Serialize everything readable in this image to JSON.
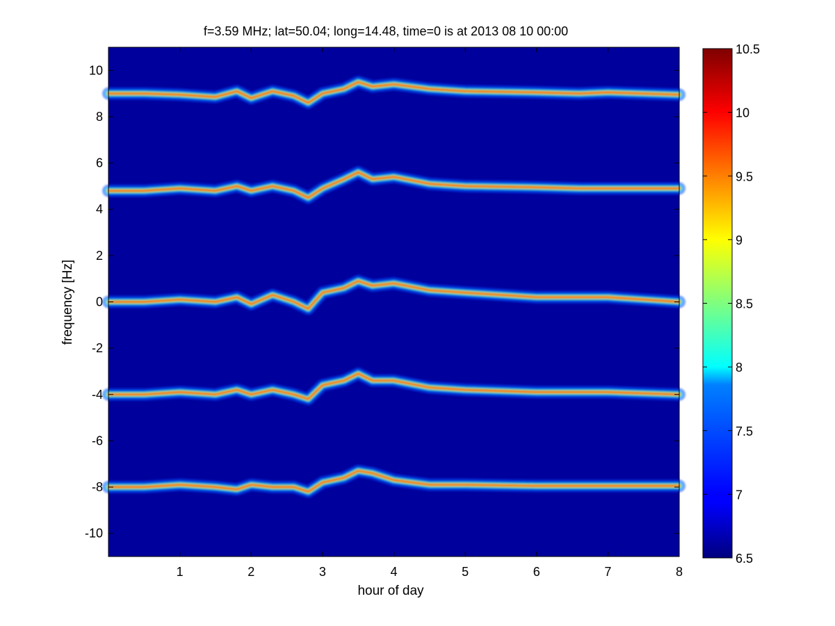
{
  "chart_data": {
    "type": "heatmap",
    "title": "f=3.59 MHz;  lat=50.04; long=14.48, time=0 is at 2013 08 10 00:00",
    "xlabel": "hour of day",
    "ylabel": "frequency [Hz]",
    "xlim": [
      0,
      8
    ],
    "ylim": [
      -11,
      11
    ],
    "x_ticks": [
      1,
      2,
      3,
      4,
      5,
      6,
      7,
      8
    ],
    "x_tick_labels": [
      "1",
      "2",
      "3",
      "4",
      "5",
      "6",
      "7",
      "8"
    ],
    "y_ticks": [
      10,
      8,
      6,
      4,
      2,
      0,
      -2,
      -4,
      -6,
      -8,
      -10
    ],
    "y_tick_labels": [
      "10",
      "8",
      "6",
      "4",
      "2",
      "0",
      "-2",
      "-4",
      "-6",
      "-8",
      "-10"
    ],
    "colorbar": {
      "range": [
        6.5,
        10.5
      ],
      "ticks": [
        10.5,
        10,
        9.5,
        9,
        8.5,
        8,
        7.5,
        7,
        6.5
      ],
      "tick_labels": [
        "10.5",
        "10",
        "9.5",
        "9",
        "8.5",
        "8",
        "7.5",
        "7",
        "6.5"
      ],
      "colormap": "jet",
      "background_color": "#00009c"
    },
    "bands": [
      {
        "center": 9,
        "trace": [
          [
            0,
            9.0
          ],
          [
            0.5,
            9.0
          ],
          [
            1,
            8.95
          ],
          [
            1.5,
            8.85
          ],
          [
            1.8,
            9.1
          ],
          [
            2,
            8.8
          ],
          [
            2.3,
            9.1
          ],
          [
            2.6,
            8.9
          ],
          [
            2.8,
            8.6
          ],
          [
            3,
            9.0
          ],
          [
            3.3,
            9.2
          ],
          [
            3.5,
            9.5
          ],
          [
            3.7,
            9.3
          ],
          [
            4,
            9.4
          ],
          [
            4.5,
            9.2
          ],
          [
            5,
            9.1
          ],
          [
            6,
            9.05
          ],
          [
            6.6,
            9.0
          ],
          [
            7,
            9.05
          ],
          [
            8,
            8.95
          ]
        ]
      },
      {
        "center": 5,
        "trace": [
          [
            0,
            4.8
          ],
          [
            0.5,
            4.8
          ],
          [
            1,
            4.9
          ],
          [
            1.5,
            4.8
          ],
          [
            1.8,
            5.0
          ],
          [
            2,
            4.8
          ],
          [
            2.3,
            5.0
          ],
          [
            2.6,
            4.8
          ],
          [
            2.8,
            4.5
          ],
          [
            3,
            4.9
          ],
          [
            3.3,
            5.3
          ],
          [
            3.5,
            5.6
          ],
          [
            3.7,
            5.3
          ],
          [
            4,
            5.4
          ],
          [
            4.5,
            5.1
          ],
          [
            5,
            5.0
          ],
          [
            6,
            4.95
          ],
          [
            6.6,
            4.9
          ],
          [
            7,
            4.9
          ],
          [
            8,
            4.9
          ]
        ]
      },
      {
        "center": 0,
        "trace": [
          [
            0,
            0.0
          ],
          [
            0.5,
            0.0
          ],
          [
            1,
            0.1
          ],
          [
            1.5,
            0.0
          ],
          [
            1.8,
            0.2
          ],
          [
            2,
            -0.1
          ],
          [
            2.3,
            0.3
          ],
          [
            2.6,
            0.0
          ],
          [
            2.8,
            -0.3
          ],
          [
            3,
            0.4
          ],
          [
            3.3,
            0.6
          ],
          [
            3.5,
            0.9
          ],
          [
            3.7,
            0.7
          ],
          [
            4,
            0.8
          ],
          [
            4.5,
            0.5
          ],
          [
            5,
            0.4
          ],
          [
            6,
            0.2
          ],
          [
            6.6,
            0.2
          ],
          [
            7,
            0.2
          ],
          [
            8,
            0.0
          ]
        ]
      },
      {
        "center": -4,
        "trace": [
          [
            0,
            -4.0
          ],
          [
            0.5,
            -4.0
          ],
          [
            1,
            -3.9
          ],
          [
            1.5,
            -4.0
          ],
          [
            1.8,
            -3.8
          ],
          [
            2,
            -4.0
          ],
          [
            2.3,
            -3.8
          ],
          [
            2.6,
            -4.0
          ],
          [
            2.8,
            -4.2
          ],
          [
            3,
            -3.6
          ],
          [
            3.3,
            -3.4
          ],
          [
            3.5,
            -3.1
          ],
          [
            3.7,
            -3.4
          ],
          [
            4,
            -3.4
          ],
          [
            4.5,
            -3.7
          ],
          [
            5,
            -3.8
          ],
          [
            6,
            -3.9
          ],
          [
            6.6,
            -3.9
          ],
          [
            7,
            -3.9
          ],
          [
            8,
            -4.0
          ]
        ]
      },
      {
        "center": -8,
        "trace": [
          [
            0,
            -8.0
          ],
          [
            0.5,
            -8.0
          ],
          [
            1,
            -7.9
          ],
          [
            1.5,
            -8.0
          ],
          [
            1.8,
            -8.1
          ],
          [
            2,
            -7.9
          ],
          [
            2.3,
            -8.0
          ],
          [
            2.6,
            -8.0
          ],
          [
            2.8,
            -8.2
          ],
          [
            3,
            -7.8
          ],
          [
            3.3,
            -7.6
          ],
          [
            3.5,
            -7.3
          ],
          [
            3.7,
            -7.4
          ],
          [
            4,
            -7.7
          ],
          [
            4.5,
            -7.9
          ],
          [
            5,
            -7.9
          ],
          [
            6,
            -7.95
          ],
          [
            6.6,
            -7.95
          ],
          [
            7,
            -7.95
          ],
          [
            8,
            -7.95
          ]
        ]
      }
    ]
  }
}
